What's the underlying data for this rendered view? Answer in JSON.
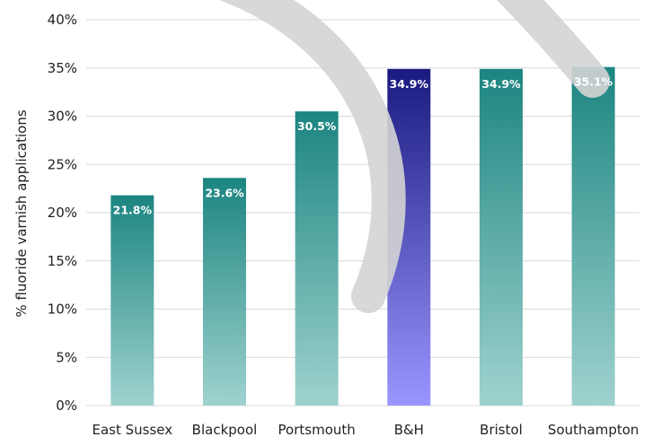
{
  "chart_data": {
    "type": "bar",
    "categories": [
      "East Sussex",
      "Blackpool",
      "Portsmouth",
      "B&H",
      "Bristol",
      "Southampton"
    ],
    "values": [
      21.8,
      23.6,
      30.5,
      34.9,
      34.9,
      35.1
    ],
    "data_labels": [
      "21.8%",
      "23.6%",
      "30.5%",
      "34.9%",
      "34.9%",
      "35.1%"
    ],
    "highlight_index": 3,
    "ylabel": "% fluoride varnish applications",
    "ylim": [
      0,
      40
    ],
    "yticks": [
      0,
      5,
      10,
      15,
      20,
      25,
      30,
      35,
      40
    ],
    "ytick_labels": [
      "0%",
      "5%",
      "10%",
      "15%",
      "20%",
      "25%",
      "30%",
      "35%",
      "40%"
    ],
    "grid": true,
    "colors": {
      "bar_top": "#1c8580",
      "bar_bottom": "#9fd2cf",
      "highlight_top": "#1a1a80",
      "highlight_bottom": "#9b96ff",
      "grid": "#d9d9d9"
    }
  }
}
